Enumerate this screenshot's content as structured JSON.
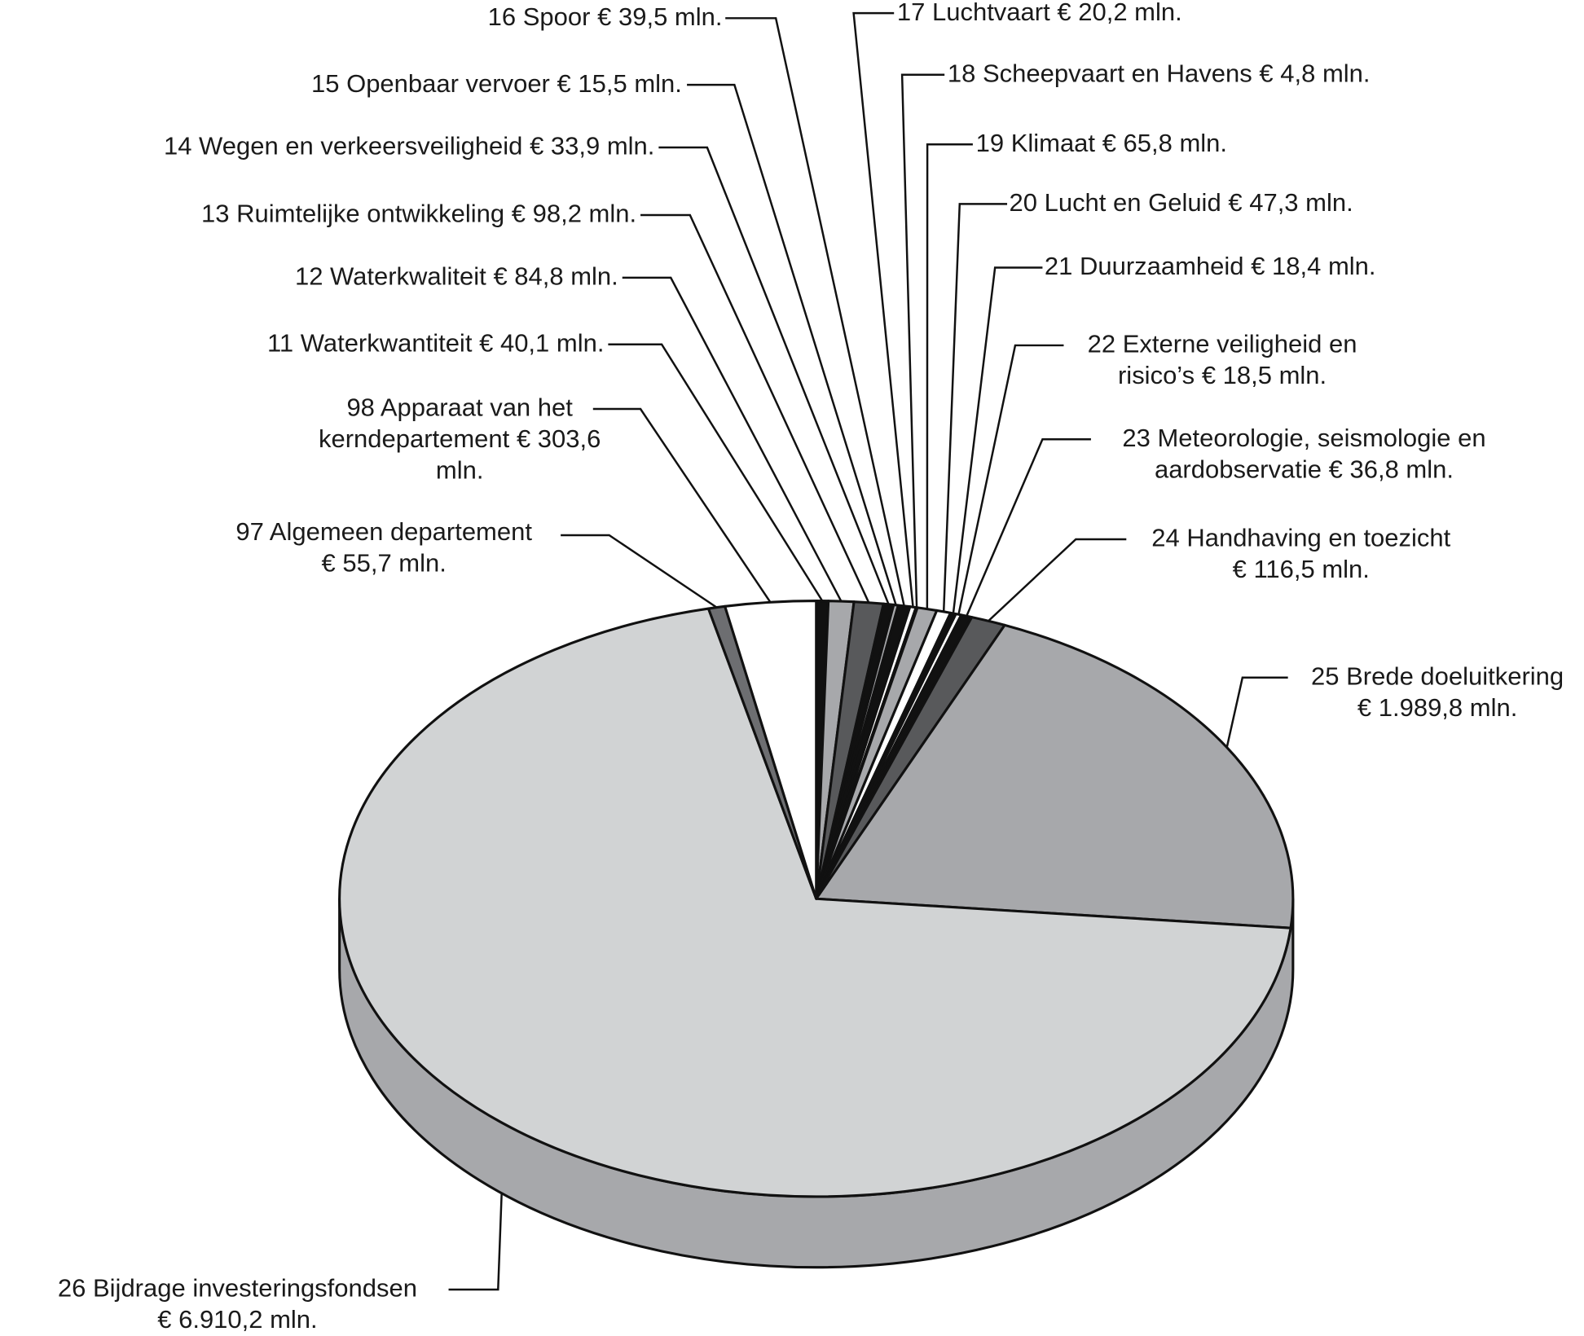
{
  "chart_data": {
    "type": "pie",
    "categories": [
      "11 Waterkwantiteit",
      "12 Waterkwaliteit",
      "13 Ruimtelijke ontwikkeling",
      "14 Wegen en verkeersveiligheid",
      "15 Openbaar vervoer",
      "16 Spoor",
      "17 Luchtvaart",
      "18 Scheepvaart en Havens",
      "19 Klimaat",
      "20 Lucht en Geluid",
      "21 Duurzaamheid",
      "22 Externe veiligheid en risico’s",
      "23 Meteorologie, seismologie en aardobservatie",
      "24 Handhaving en toezicht",
      "25 Brede doeluitkering",
      "26 Bijdrage investeringsfondsen",
      "97 Algemeen departement",
      "98 Apparaat van het kerndepartement"
    ],
    "values": [
      40.1,
      84.8,
      98.2,
      33.9,
      15.5,
      39.5,
      20.2,
      4.8,
      65.8,
      47.3,
      18.4,
      18.5,
      36.8,
      116.5,
      1989.8,
      6910.2,
      55.7,
      303.6
    ],
    "value_labels": [
      "€ 40,1 mln.",
      "€ 84,8 mln.",
      "€ 98,2 mln.",
      "€ 33,9 mln.",
      "€ 15,5 mln.",
      "€ 39,5 mln.",
      "€ 20,2 mln.",
      "€ 4,8 mln.",
      "€ 65,8 mln.",
      "€ 47,3 mln.",
      "€ 18,4 mln.",
      "€ 18,5 mln.",
      "€ 36,8 mln.",
      "€ 116,5 mln.",
      "€ 1.989,8 mln.",
      "€ 6.910,2 mln.",
      "€ 55,7 mln.",
      "€ 303,6 mln."
    ],
    "colors": [
      "#111111",
      "#a7a8ab",
      "#58595b",
      "#111111",
      "#a7a8ab",
      "#111111",
      "#ffffff",
      "#111111",
      "#a7a8ab",
      "#ffffff",
      "#111111",
      "#ffffff",
      "#111111",
      "#58595b",
      "#a7a8ab",
      "#d1d3d4",
      "#6d6e71",
      "#ffffff"
    ]
  }
}
